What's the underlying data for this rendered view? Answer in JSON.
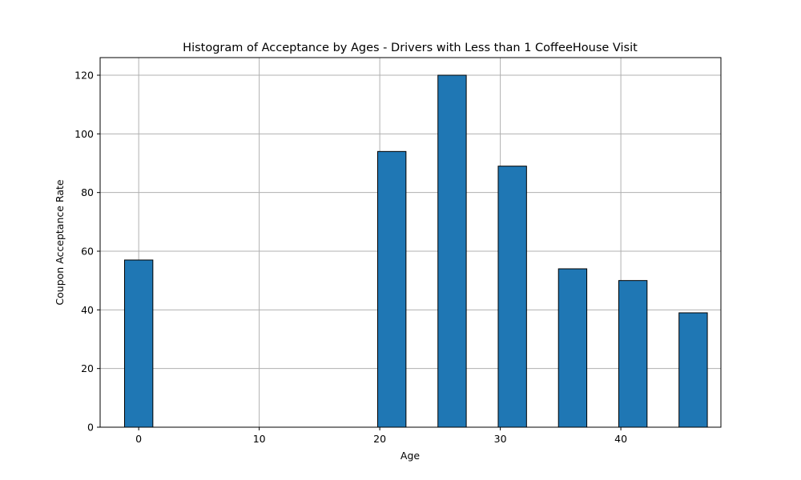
{
  "chart_data": {
    "type": "bar",
    "title": "Histogram of Acceptance by Ages - Drivers with Less than 1 CoffeeHouse Visit",
    "xlabel": "Age",
    "ylabel": "Coupon Acceptance Rate",
    "xlim": [
      -3.2,
      48.3
    ],
    "ylim": [
      0,
      126
    ],
    "bin_width": 2.35,
    "bars": [
      {
        "x": 0,
        "value": 57
      },
      {
        "x": 21,
        "value": 94
      },
      {
        "x": 26,
        "value": 120
      },
      {
        "x": 31,
        "value": 89
      },
      {
        "x": 36,
        "value": 54
      },
      {
        "x": 41,
        "value": 50
      },
      {
        "x": 46,
        "value": 39
      }
    ],
    "xticks": [
      0,
      10,
      20,
      30,
      40
    ],
    "yticks": [
      0,
      20,
      40,
      60,
      80,
      100,
      120
    ],
    "grid": true,
    "bar_color": "#1f77b4",
    "edge_color": "#000000"
  }
}
